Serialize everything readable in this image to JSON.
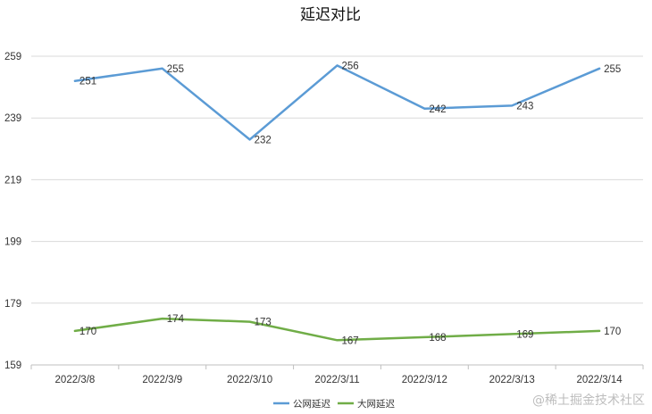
{
  "chart_data": {
    "type": "line",
    "title": "延迟对比",
    "categories": [
      "2022/3/8",
      "2022/3/9",
      "2022/3/10",
      "2022/3/11",
      "2022/3/12",
      "2022/3/13",
      "2022/3/14"
    ],
    "series": [
      {
        "name": "公网延迟",
        "values": [
          251,
          255,
          232,
          256,
          242,
          243,
          255
        ],
        "color": "#5b9bd5"
      },
      {
        "name": "大网延迟",
        "values": [
          170,
          174,
          173,
          167,
          168,
          169,
          170
        ],
        "color": "#70ad47"
      }
    ],
    "yticks": [
      159,
      179,
      199,
      219,
      239,
      259
    ],
    "ylim": [
      159,
      259
    ],
    "xlabel": "",
    "ylabel": "",
    "grid": true,
    "legend": "bottom-center"
  },
  "watermark": "@稀土掘金技术社区"
}
